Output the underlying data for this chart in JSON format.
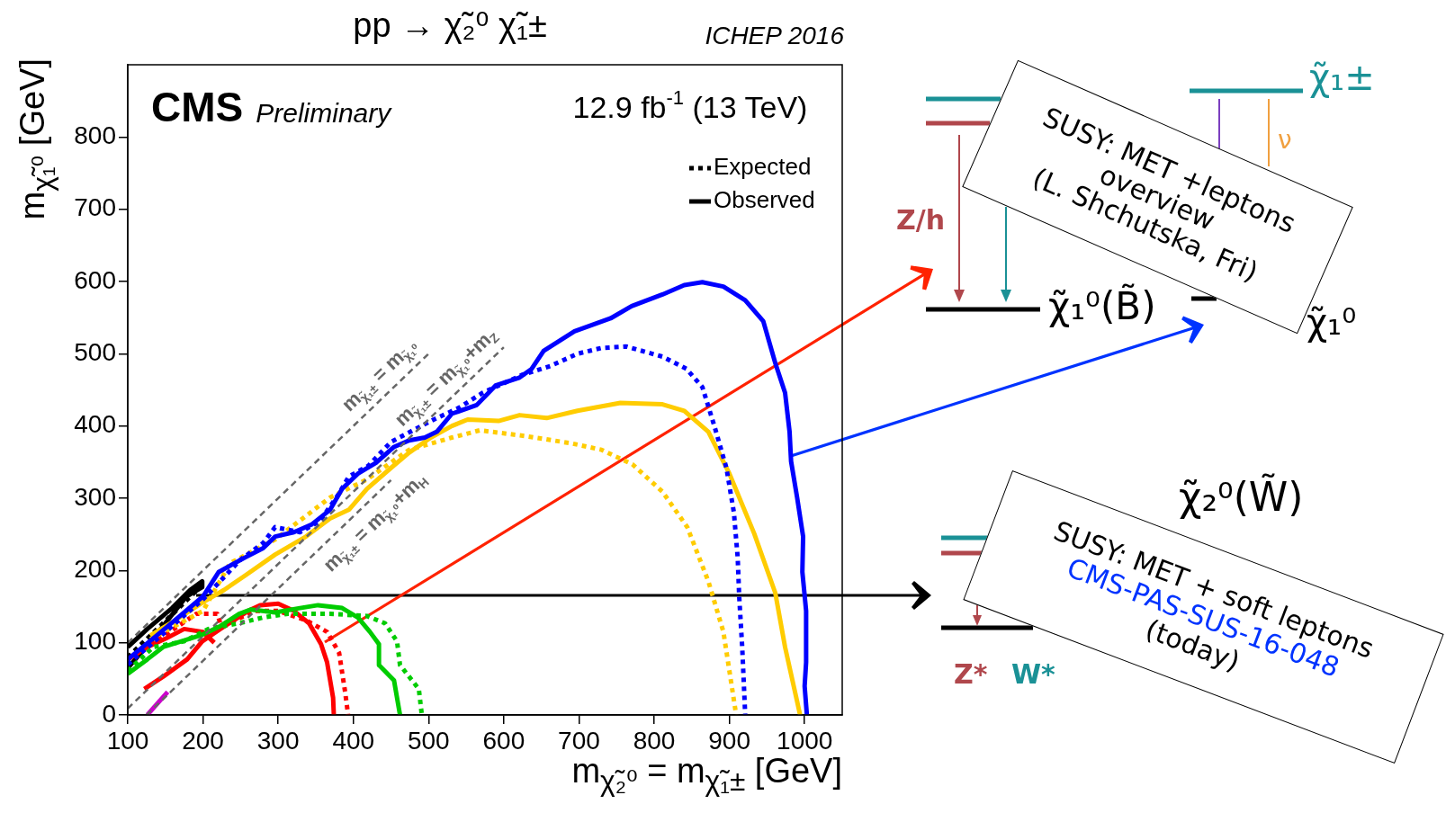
{
  "chart_data": {
    "type": "line",
    "title": "pp → χ̃₂⁰ χ̃₁±",
    "xlabel": "m$_{χ̃₂⁰}$ = m$_{χ̃₁±}$ [GeV]",
    "ylabel": "m$_{χ̃₁⁰}$ [GeV]",
    "xlim": [
      100,
      1050
    ],
    "ylim": [
      0,
      900
    ],
    "xticks": [
      100,
      200,
      300,
      400,
      500,
      600,
      700,
      800,
      900,
      1000
    ],
    "yticks": [
      0,
      100,
      200,
      300,
      400,
      500,
      600,
      700,
      800
    ],
    "marker": "none",
    "legend": "top right",
    "annotations": [
      "CMS",
      "Preliminary",
      "12.9 fb$^{-1}$ (13 TeV)",
      "ICHEP 2016",
      "m$_{χ̃₁±}$ = m$_{χ̃₁⁰}$",
      "m$_{χ̃₁±}$ = m$_{χ̃₁⁰}$+m$_{Z}$",
      "m$_{χ̃₁±}$ = m$_{χ̃₁⁰}$+m$_{H}$",
      "SUSY: MET +leptons",
      "overview",
      "(L. Shchutska, Fri)",
      "SUSY: MET + soft leptons",
      "CMS-PAS-SUS-16-048",
      "(today)",
      "Z/h",
      "χ̃₁⁰(B̃)",
      "χ̃₁±",
      "ν",
      "χ̃₁⁰",
      "χ̃₂⁰(W̃)",
      "Z*",
      "W*"
    ],
    "series": [
      {
        "color": "#666666",
        "line_style": "dashed",
        "x": [
          100,
          500
        ],
        "values": [
          100,
          500
        ]
      },
      {
        "color": "#666666",
        "line_style": "dashed",
        "x": [
          100,
          600
        ],
        "values": [
          9,
          509
        ]
      },
      {
        "color": "#666666",
        "line_style": "dashed",
        "x": [
          125,
          450
        ],
        "values": [
          0,
          325
        ]
      },
      {
        "color": "#0000ff",
        "line_style": "solid",
        "x": [
          100,
          150,
          200,
          221,
          256,
          280,
          296,
          321,
          345,
          369,
          385,
          406,
          430,
          454,
          474,
          495,
          511,
          531,
          564,
          589,
          621,
          637,
          653,
          694,
          742,
          770,
          811,
          840,
          864,
          892,
          921,
          945,
          961,
          974,
          980,
          982,
          990,
          998,
          997,
          1002,
          1002,
          1000,
          1003
        ],
        "values": [
          77,
          120,
          164,
          198,
          218,
          231,
          247,
          253,
          264,
          284,
          313,
          334,
          349,
          371,
          380,
          384,
          392,
          417,
          429,
          456,
          467,
          479,
          504,
          531,
          549,
          566,
          582,
          595,
          599,
          593,
          574,
          545,
          487,
          446,
          392,
          351,
          301,
          247,
          198,
          144,
          73,
          40,
          0
        ]
      },
      {
        "color": "#0000ff",
        "line_style": "dotted",
        "x": [
          100,
          150,
          200,
          250,
          280,
          296,
          329,
          355,
          380,
          394,
          420,
          450,
          507,
          540,
          572,
          625,
          662,
          698,
          730,
          763,
          811,
          843,
          864,
          880,
          896,
          906,
          911,
          913,
          917,
          921
        ],
        "values": [
          70,
          115,
          160,
          215,
          238,
          260,
          253,
          268,
          305,
          330,
          345,
          378,
          409,
          425,
          446,
          471,
          483,
          500,
          508,
          510,
          496,
          479,
          454,
          400,
          342,
          280,
          218,
          164,
          94,
          0
        ]
      },
      {
        "color": "#ffcc00",
        "line_style": "solid",
        "x": [
          130,
          163,
          200,
          228,
          256,
          296,
          337,
          369,
          394,
          418,
          450,
          474,
          503,
          531,
          552,
          593,
          621,
          657,
          698,
          755,
          811,
          840,
          872,
          900,
          933,
          961,
          974,
          994
        ],
        "values": [
          110,
          131,
          156,
          173,
          193,
          222,
          247,
          272,
          284,
          313,
          342,
          363,
          384,
          400,
          409,
          407,
          415,
          411,
          421,
          432,
          430,
          421,
          392,
          334,
          251,
          169,
          94,
          0
        ]
      },
      {
        "color": "#ffcc00",
        "line_style": "dotted",
        "x": [
          130,
          200,
          236,
          296,
          369,
          418,
          474,
          531,
          568,
          629,
          690,
          730,
          771,
          811,
          844,
          872,
          892,
          909
        ],
        "values": [
          105,
          144,
          210,
          243,
          301,
          326,
          367,
          384,
          394,
          386,
          376,
          367,
          347,
          309,
          260,
          185,
          115,
          0
        ]
      },
      {
        "color": "#00cc00",
        "line_style": "solid",
        "x": [
          100,
          126,
          147,
          199,
          223,
          248,
          264,
          296,
          329,
          353,
          385,
          406,
          422,
          434,
          434,
          454,
          462
        ],
        "values": [
          57,
          77,
          94,
          111,
          123,
          140,
          146,
          142,
          148,
          152,
          148,
          135,
          115,
          98,
          69,
          48,
          0
        ]
      },
      {
        "color": "#00cc00",
        "line_style": "dotted",
        "x": [
          100,
          134,
          175,
          207,
          248,
          280,
          313,
          369,
          418,
          442,
          458,
          462,
          487,
          491
        ],
        "values": [
          61,
          94,
          102,
          119,
          127,
          135,
          140,
          140,
          137,
          127,
          102,
          69,
          36,
          0
        ]
      },
      {
        "color": "#ff0000",
        "line_style": "solid",
        "x": [
          122,
          147,
          179,
          199,
          223,
          260,
          276,
          300,
          321,
          341,
          357,
          365,
          373,
          374
        ],
        "values": [
          36,
          53,
          77,
          102,
          119,
          144,
          152,
          154,
          144,
          127,
          98,
          73,
          24,
          0
        ]
      },
      {
        "color": "#ff0000",
        "line_style": "solid",
        "x": [
          100,
          126,
          151,
          175,
          200,
          215
        ],
        "values": [
          77,
          94,
          106,
          119,
          115,
          100
        ]
      },
      {
        "color": "#ff0000",
        "line_style": "dotted",
        "x": [
          100,
          126,
          167,
          191,
          219,
          223,
          228,
          268,
          300,
          337,
          365,
          381,
          389,
          393
        ],
        "values": [
          77,
          94,
          123,
          140,
          140,
          127,
          123,
          144,
          144,
          131,
          115,
          86,
          32,
          0
        ]
      },
      {
        "color": "#cc00cc",
        "line_style": "solid",
        "x": [
          126,
          153
        ],
        "values": [
          0,
          32
        ]
      },
      {
        "name": "Expected",
        "color": "#000000",
        "line_style": "dotted",
        "x": [
          100,
          150,
          199
        ],
        "values": [
          80,
          130,
          180
        ]
      },
      {
        "name": "Observed",
        "color": "#000000",
        "line_style": "solid",
        "x": [
          100,
          126,
          159,
          183,
          199,
          199,
          178,
          134,
          100
        ],
        "values": [
          94,
          119,
          148,
          173,
          185,
          177,
          164,
          106,
          65
        ]
      }
    ]
  }
}
